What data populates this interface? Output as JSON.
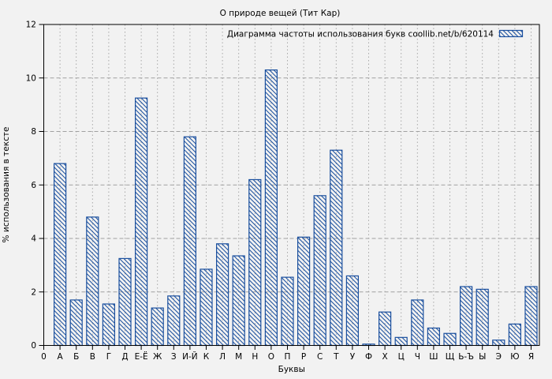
{
  "chart_data": {
    "type": "bar",
    "title": "О природе вещей (Тит Кар)",
    "legend": "Диаграмма частоты использования букв coollib.net/b/620114",
    "xlabel": "Буквы",
    "ylabel": "% использования в тексте",
    "ylim": [
      0,
      12
    ],
    "yticks": [
      0,
      2,
      4,
      6,
      8,
      10,
      12
    ],
    "grid": true,
    "legend_position": "top-right",
    "categories": [
      "0",
      "А",
      "Б",
      "В",
      "Г",
      "Д",
      "Е-Ё",
      "Ж",
      "З",
      "И-Й",
      "К",
      "Л",
      "М",
      "Н",
      "О",
      "П",
      "Р",
      "С",
      "Т",
      "У",
      "Ф",
      "Х",
      "Ц",
      "Ч",
      "Ш",
      "Щ",
      "Ь-Ъ",
      "Ы",
      "Э",
      "Ю",
      "Я"
    ],
    "values": [
      null,
      6.8,
      1.7,
      4.8,
      1.55,
      3.25,
      9.25,
      1.4,
      1.85,
      7.8,
      2.85,
      3.8,
      3.35,
      6.2,
      10.3,
      2.55,
      4.05,
      5.6,
      7.3,
      2.6,
      0.05,
      1.25,
      0.3,
      1.7,
      0.65,
      0.45,
      2.2,
      2.1,
      0.2,
      0.8,
      2.2
    ],
    "colors": {
      "bar": "#1a4f9e",
      "grid": "#a0a0a0",
      "axis": "#000000",
      "background": "#f2f2f2"
    }
  }
}
